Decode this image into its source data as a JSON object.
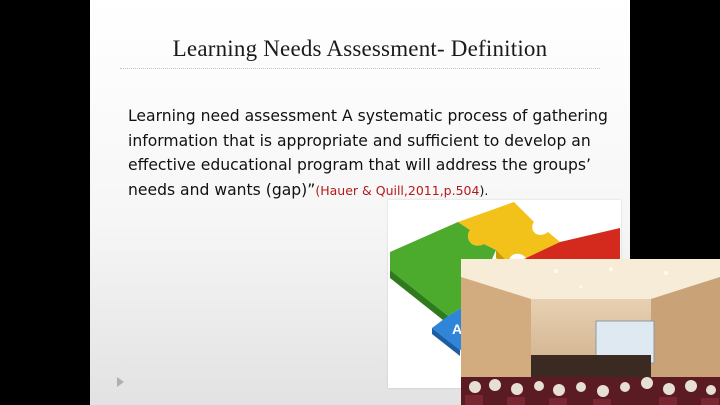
{
  "slide": {
    "title": "Learning Needs Assessment- Definition",
    "body_main": "Learning need assessment A systematic process of gathering information that is appropriate and sufficient to develop an effective educational program that will address the groups’ needs and wants (gap)”",
    "citation": "(Hauer & Quill,2011,p.504",
    "citation_tail": ")."
  },
  "image": {
    "puzzle_piece_label": "A",
    "piece_colors": {
      "green": "#4caa2c",
      "yellow": "#f2c21a",
      "red": "#d42a1e",
      "blue": "#2f86d8"
    }
  },
  "colors": {
    "citation": "#b31b1b",
    "background_bars": "#000000"
  }
}
